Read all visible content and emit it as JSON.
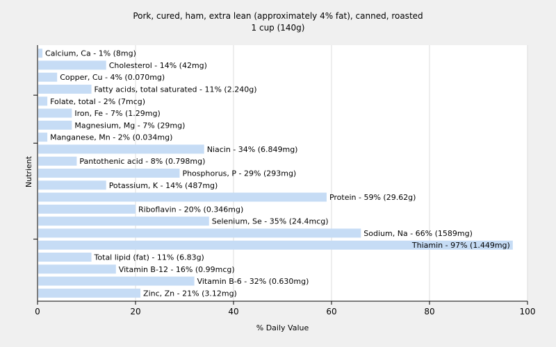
{
  "chart_data": {
    "type": "bar",
    "orientation": "horizontal",
    "title": "Pork, cured, ham, extra lean (approximately 4% fat), canned, roasted",
    "subtitle": "1 cup (140g)",
    "xlabel": "% Daily Value",
    "ylabel": "Nutrient",
    "xlim": [
      0,
      100
    ],
    "xticks": [
      "0",
      "20",
      "40",
      "60",
      "80",
      "100"
    ],
    "grid": true,
    "bar_color": "#c6dcf5",
    "categories": [
      "Calcium, Ca",
      "Cholesterol",
      "Copper, Cu",
      "Fatty acids, total saturated",
      "Folate, total",
      "Iron, Fe",
      "Magnesium, Mg",
      "Manganese, Mn",
      "Niacin",
      "Pantothenic acid",
      "Phosphorus, P",
      "Potassium, K",
      "Protein",
      "Riboflavin",
      "Selenium, Se",
      "Sodium, Na",
      "Thiamin",
      "Total lipid (fat)",
      "Vitamin B-12",
      "Vitamin B-6",
      "Zinc, Zn"
    ],
    "values": [
      1,
      14,
      4,
      11,
      2,
      7,
      7,
      2,
      34,
      8,
      29,
      14,
      59,
      20,
      35,
      66,
      97,
      11,
      16,
      32,
      21
    ],
    "labels": [
      "Calcium, Ca - 1% (8mg)",
      "Cholesterol - 14% (42mg)",
      "Copper, Cu - 4% (0.070mg)",
      "Fatty acids, total saturated - 11% (2.240g)",
      "Folate, total - 2% (7mcg)",
      "Iron, Fe - 7% (1.29mg)",
      "Magnesium, Mg - 7% (29mg)",
      "Manganese, Mn - 2% (0.034mg)",
      "Niacin - 34% (6.849mg)",
      "Pantothenic acid - 8% (0.798mg)",
      "Phosphorus, P - 29% (293mg)",
      "Potassium, K - 14% (487mg)",
      "Protein - 59% (29.62g)",
      "Riboflavin - 20% (0.346mg)",
      "Selenium, Se - 35% (24.4mcg)",
      "Sodium, Na - 66% (1589mg)",
      "Thiamin - 97% (1.449mg)",
      "Total lipid (fat) - 11% (6.83g)",
      "Vitamin B-12 - 16% (0.99mcg)",
      "Vitamin B-6 - 32% (0.630mg)",
      "Zinc, Zn - 21% (3.12mg)"
    ]
  }
}
